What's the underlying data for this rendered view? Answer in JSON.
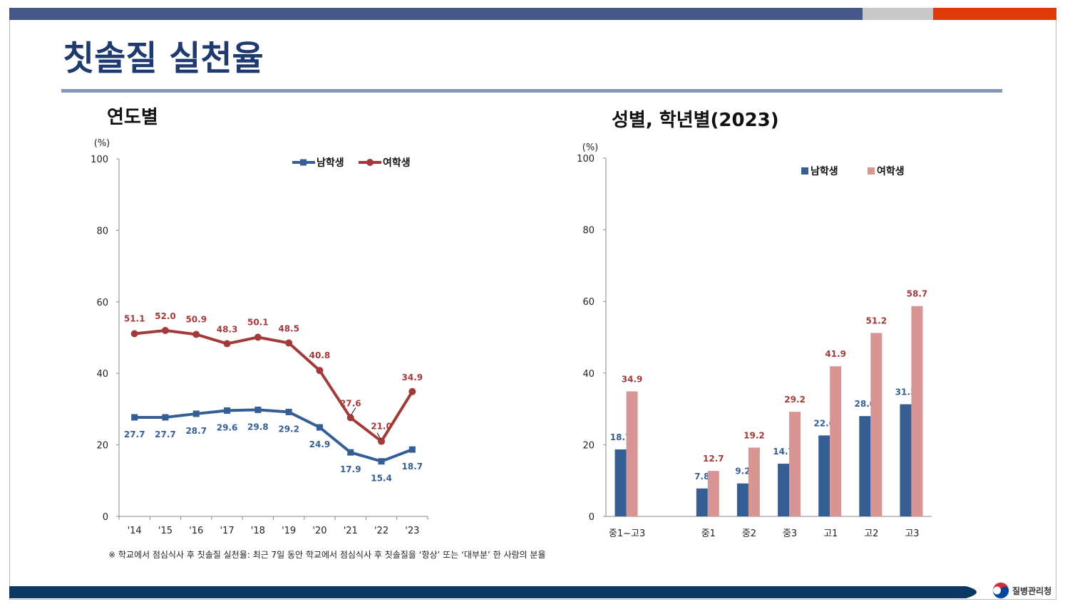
{
  "slide": {
    "title": "칫솔질 실천율",
    "footnote": "※ 학교에서 점심식사 후 칫솔질 실천율: 최근 7일 동안 학교에서 점심식사 후 칫솔질을 ‘항상’ 또는 ‘대부분’ 한 사람의 분율",
    "logo_text": "질병관리청",
    "colors": {
      "top_bar": "#44598a",
      "accent_gray": "#c8c8c8",
      "accent_orange": "#e03a06",
      "title": "#1f3a6e",
      "rule": "#8496ba",
      "bottom_bar": "#0b3764",
      "male": "#355f94",
      "female_line": "#a33a3a",
      "female_bar": "#d99594"
    }
  },
  "chart_data": [
    {
      "type": "line",
      "title": "연도별",
      "unit_label": "(%)",
      "ylim": [
        0,
        100
      ],
      "yticks": [
        0,
        20,
        40,
        60,
        80,
        100
      ],
      "categories": [
        "'14",
        "'15",
        "'16",
        "'17",
        "'18",
        "'19",
        "'20",
        "'21",
        "'22",
        "'23"
      ],
      "series": [
        {
          "name": "남학생",
          "color": "#355f94",
          "values": [
            27.7,
            27.7,
            28.7,
            29.6,
            29.8,
            29.2,
            24.9,
            17.9,
            15.4,
            18.7
          ]
        },
        {
          "name": "여학생",
          "color": "#a33a3a",
          "values": [
            51.1,
            52.0,
            50.9,
            48.3,
            50.1,
            48.5,
            40.8,
            27.6,
            21.0,
            34.9
          ]
        }
      ],
      "legend": "top"
    },
    {
      "type": "bar",
      "title": "성별, 학년별(2023)",
      "unit_label": "(%)",
      "ylim": [
        0,
        100
      ],
      "yticks": [
        0,
        20,
        40,
        60,
        80,
        100
      ],
      "categories": [
        "중1~고3",
        "",
        "중1",
        "중2",
        "중3",
        "고1",
        "고2",
        "고3"
      ],
      "series": [
        {
          "name": "남학생",
          "color": "#355f94",
          "values": [
            18.7,
            null,
            7.8,
            9.2,
            14.7,
            22.6,
            28.0,
            31.3
          ]
        },
        {
          "name": "여학생",
          "color": "#d99594",
          "values": [
            34.9,
            null,
            12.7,
            19.2,
            29.2,
            41.9,
            51.2,
            58.7
          ]
        }
      ],
      "legend": "top-right"
    }
  ]
}
